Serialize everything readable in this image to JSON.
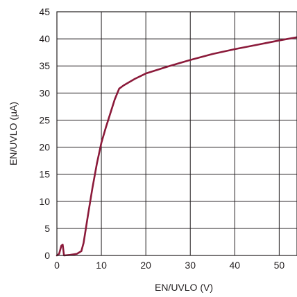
{
  "chart_data": {
    "type": "line",
    "title": "",
    "xlabel": "EN/UVLO (V)",
    "ylabel": "EN/UVLO (µA)",
    "xlim": [
      0,
      54
    ],
    "ylim": [
      0,
      45
    ],
    "x_ticks": [
      0,
      10,
      20,
      30,
      40,
      50
    ],
    "y_ticks": [
      0,
      5,
      10,
      15,
      20,
      25,
      30,
      35,
      40,
      45
    ],
    "grid": true,
    "legend": "none",
    "colors": {
      "series": "#8b1a3a",
      "axis": "#231f20",
      "background": "#ffffff"
    },
    "series": [
      {
        "points": [
          [
            0,
            0.0
          ],
          [
            0.5,
            0.3
          ],
          [
            1.0,
            1.8
          ],
          [
            1.3,
            2.0
          ],
          [
            1.6,
            0.0
          ],
          [
            3.0,
            0.1
          ],
          [
            4.5,
            0.3
          ],
          [
            5.5,
            0.8
          ],
          [
            6.0,
            2.3
          ],
          [
            7.0,
            7.5
          ],
          [
            8.0,
            12.5
          ],
          [
            9.0,
            17.0
          ],
          [
            10.0,
            20.8
          ],
          [
            11.0,
            23.6
          ],
          [
            12.0,
            26.2
          ],
          [
            13.0,
            28.8
          ],
          [
            14.0,
            30.8
          ],
          [
            15.0,
            31.4
          ],
          [
            17.5,
            32.6
          ],
          [
            20.0,
            33.6
          ],
          [
            25.0,
            34.9
          ],
          [
            30.0,
            36.1
          ],
          [
            35.0,
            37.2
          ],
          [
            40.0,
            38.1
          ],
          [
            45.0,
            38.9
          ],
          [
            50.0,
            39.7
          ],
          [
            54.0,
            40.3
          ]
        ]
      }
    ]
  }
}
